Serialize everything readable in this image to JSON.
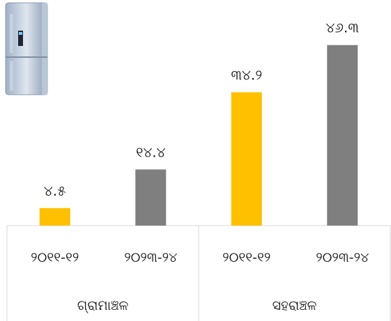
{
  "illustration": {
    "icon": "refrigerator-icon"
  },
  "colors": {
    "period_a": "#FFC000",
    "period_b": "#7F7F7F",
    "axis": "#D9D9D9"
  },
  "chart_data": {
    "type": "bar",
    "title": "",
    "xlabel": "",
    "ylabel": "",
    "ylim": [
      0,
      50
    ],
    "grid": false,
    "legend": "none",
    "groups": [
      {
        "label": "ଗ୍ରାମାଞ୍ଚଳ",
        "categories": [
          "୨୦୧୧-୧୨",
          "୨୦୨୩-୨୪"
        ],
        "values": [
          4.5,
          14.4
        ],
        "value_labels": [
          "୪.୫",
          "୧୪.୪"
        ]
      },
      {
        "label": "ସହରାଞ୍ଚଳ",
        "categories": [
          "୨୦୧୧-୧୨",
          "୨୦୨୩-୨୪"
        ],
        "values": [
          34.2,
          46.3
        ],
        "value_labels": [
          "୩୪.୨",
          "୪୬.୩"
        ]
      }
    ]
  }
}
